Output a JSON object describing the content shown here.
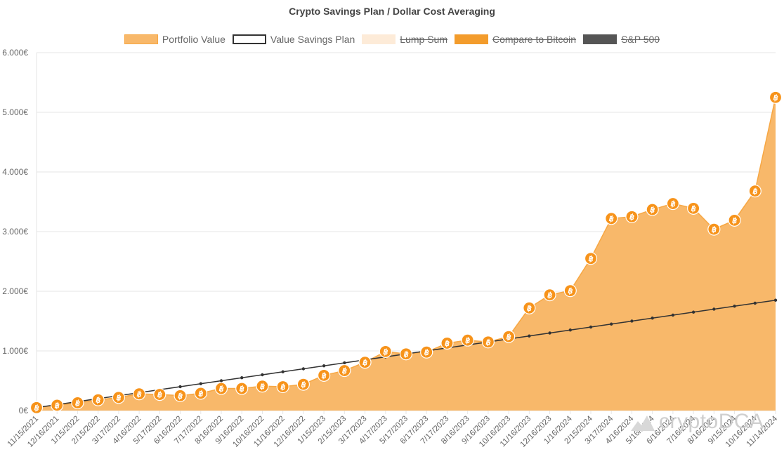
{
  "chart_data": {
    "type": "area",
    "title": "Crypto Savings Plan / Dollar Cost Averaging",
    "x": [
      "11/15/2021",
      "12/16/2021",
      "1/15/2022",
      "2/15/2022",
      "3/17/2022",
      "4/16/2022",
      "5/17/2022",
      "6/16/2022",
      "7/17/2022",
      "8/16/2022",
      "9/16/2022",
      "10/16/2022",
      "11/16/2022",
      "12/16/2022",
      "1/15/2023",
      "2/15/2023",
      "3/17/2023",
      "4/17/2023",
      "5/17/2023",
      "6/17/2023",
      "7/17/2023",
      "8/16/2023",
      "9/16/2023",
      "10/16/2023",
      "11/16/2023",
      "12/16/2023",
      "1/16/2024",
      "2/15/2024",
      "3/17/2024",
      "4/16/2024",
      "5/16/2024",
      "6/16/2024",
      "7/16/2024",
      "8/16/2024",
      "9/15/2024",
      "10/16/2024",
      "11/14/2024"
    ],
    "yticks": [
      "0€",
      "1.000€",
      "2.000€",
      "3.000€",
      "4.000€",
      "5.000€",
      "6.000€"
    ],
    "ylim": [
      0,
      6000
    ],
    "grid": true,
    "legend_position": "top",
    "series": [
      {
        "name": "Portfolio Value",
        "kind": "area",
        "color": "#f7931a",
        "fill": "#f8b86a",
        "marker": "bitcoin-icon",
        "visible": true,
        "values": [
          50,
          90,
          130,
          180,
          220,
          280,
          270,
          250,
          290,
          370,
          370,
          410,
          400,
          440,
          590,
          670,
          810,
          990,
          950,
          980,
          1130,
          1180,
          1150,
          1240,
          1720,
          1940,
          2010,
          2550,
          3220,
          3250,
          3370,
          3470,
          3390,
          3040,
          3190,
          3680,
          5250
        ]
      },
      {
        "name": "Value Savings Plan",
        "kind": "line",
        "color": "#333333",
        "visible": true,
        "values": [
          50,
          100,
          150,
          200,
          250,
          300,
          350,
          400,
          450,
          500,
          550,
          600,
          650,
          700,
          750,
          800,
          850,
          900,
          950,
          1000,
          1050,
          1100,
          1150,
          1200,
          1250,
          1300,
          1350,
          1400,
          1450,
          1500,
          1550,
          1600,
          1650,
          1700,
          1750,
          1800,
          1850
        ]
      },
      {
        "name": "Lump Sum",
        "kind": "area",
        "color": "#fdebd8",
        "visible": false
      },
      {
        "name": "Compare to Bitcoin",
        "kind": "area",
        "color": "#f39c2c",
        "visible": false
      },
      {
        "name": "S&P 500",
        "kind": "line",
        "color": "#555555",
        "visible": false
      }
    ]
  },
  "watermark": {
    "text": "cryptoDCA"
  },
  "colors": {
    "grid": "#e6e6e6",
    "axis_text": "#666666",
    "area_border": "#f7a743",
    "marker_inner": "#ffffff"
  }
}
